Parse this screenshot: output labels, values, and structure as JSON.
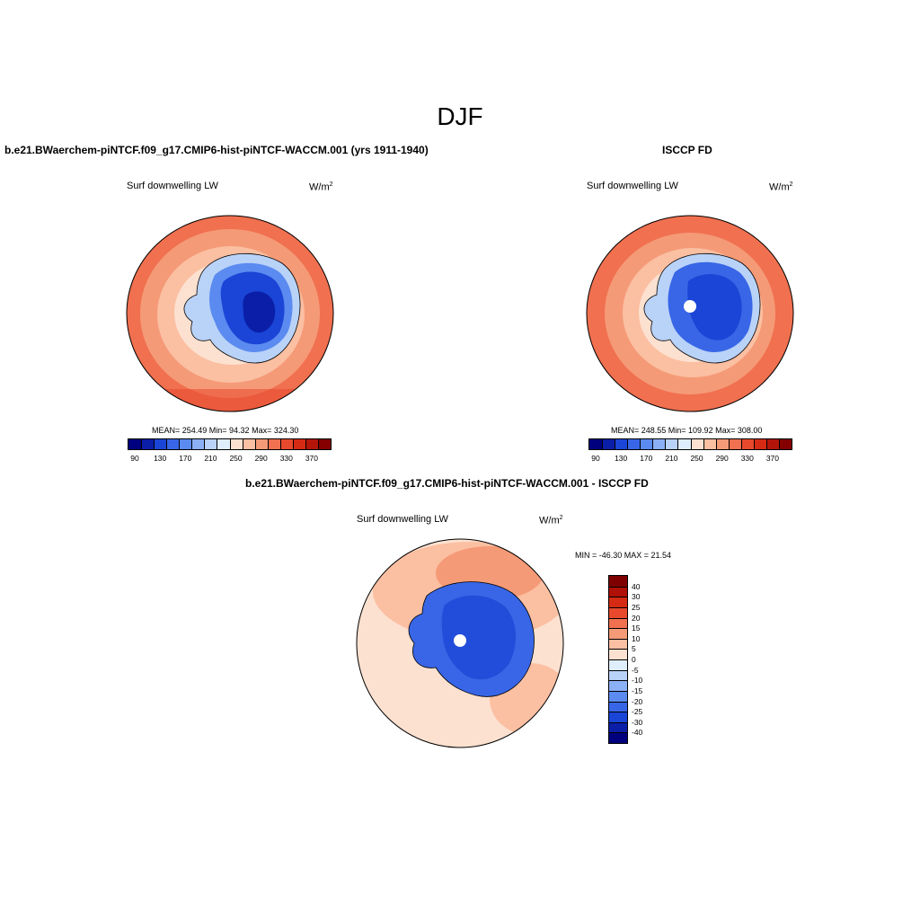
{
  "figure_title": "DJF",
  "units_base": "W/m",
  "units_exp": "2",
  "chart_data": [
    {
      "type": "heatmap",
      "projection": "south-polar-stereographic",
      "title": "b.e21.BWaerchem-piNTCF.f09_g17.CMIP6-hist-piNTCF-WACCM.001 (yrs 1911-1940)",
      "variable": "Surf downwelling LW",
      "stats_text": "MEAN= 254.49  Min=  94.32  Max= 324.30",
      "mean": 254.49,
      "min": 94.32,
      "max": 324.3,
      "colorbar": {
        "levels": [
          90,
          110,
          130,
          150,
          170,
          190,
          210,
          230,
          250,
          270,
          290,
          310,
          330,
          350,
          370
        ],
        "tick_labels": [
          "90",
          "130",
          "170",
          "210",
          "250",
          "290",
          "330",
          "370"
        ],
        "colors": [
          "#00007f",
          "#0a1ea8",
          "#1a45d6",
          "#3866e6",
          "#5b8bf0",
          "#8cb0f5",
          "#b9d2f8",
          "#dfeefc",
          "#fde1d0",
          "#fbbfa2",
          "#f59a77",
          "#f07050",
          "#e8492d",
          "#d52a14",
          "#b3150a",
          "#840000"
        ]
      }
    },
    {
      "type": "heatmap",
      "projection": "south-polar-stereographic",
      "title": "ISCCP FD",
      "variable": "Surf downwelling LW",
      "stats_text": "MEAN= 248.55  Min= 109.92  Max= 308.00",
      "mean": 248.55,
      "min": 109.92,
      "max": 308.0,
      "colorbar": {
        "levels": [
          90,
          110,
          130,
          150,
          170,
          190,
          210,
          230,
          250,
          270,
          290,
          310,
          330,
          350,
          370
        ],
        "tick_labels": [
          "90",
          "130",
          "170",
          "210",
          "250",
          "290",
          "330",
          "370"
        ],
        "colors": [
          "#00007f",
          "#0a1ea8",
          "#1a45d6",
          "#3866e6",
          "#5b8bf0",
          "#8cb0f5",
          "#b9d2f8",
          "#dfeefc",
          "#fde1d0",
          "#fbbfa2",
          "#f59a77",
          "#f07050",
          "#e8492d",
          "#d52a14",
          "#b3150a",
          "#840000"
        ]
      }
    },
    {
      "type": "heatmap",
      "projection": "south-polar-stereographic",
      "title": "b.e21.BWaerchem-piNTCF.f09_g17.CMIP6-hist-piNTCF-WACCM.001 - ISCCP FD",
      "variable": "Surf downwelling LW",
      "stats_text": "MIN = -46.30 MAX =  21.54",
      "min": -46.3,
      "max": 21.54,
      "colorbar": {
        "orientation": "vertical",
        "tick_labels": [
          "40",
          "30",
          "25",
          "20",
          "15",
          "10",
          "5",
          "0",
          "-5",
          "-10",
          "-15",
          "-20",
          "-25",
          "-30",
          "-40"
        ],
        "colors": [
          "#7f0000",
          "#b01008",
          "#d52a14",
          "#e8492d",
          "#f07050",
          "#f59a77",
          "#fbbfa2",
          "#fde1d0",
          "#dfeefc",
          "#b9d2f8",
          "#8cb0f5",
          "#5b8bf0",
          "#3866e6",
          "#1a45d6",
          "#0a1ea8",
          "#00007f"
        ]
      }
    }
  ]
}
